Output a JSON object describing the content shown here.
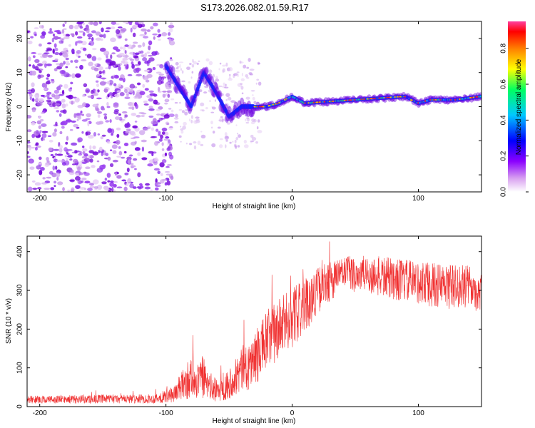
{
  "title": "S173.2026.082.01.59.R17",
  "chart_data": [
    {
      "type": "heatmap",
      "xlabel": "Height of straight line (km)",
      "ylabel": "Frequency (Hz)",
      "xlim": [
        -210,
        150
      ],
      "ylim": [
        -25,
        25
      ],
      "xticks": [
        -200,
        -100,
        0,
        100
      ],
      "yticks": [
        -20,
        -10,
        0,
        10,
        20
      ],
      "colorbar": {
        "label": "Normalized spectral amplitude",
        "range": [
          0,
          0.95
        ],
        "ticks": [
          0.0,
          0.2,
          0.4,
          0.6,
          0.8
        ],
        "colormap": [
          "#ffffff",
          "#d8a0f0",
          "#8a00ff",
          "#0000ff",
          "#00c8ff",
          "#00ff60",
          "#ffff00",
          "#ff8000",
          "#ff0000",
          "#ff40a0"
        ]
      },
      "ridge": [
        {
          "x": -100,
          "y": 12
        },
        {
          "x": -90,
          "y": 6
        },
        {
          "x": -80,
          "y": 0
        },
        {
          "x": -70,
          "y": 10
        },
        {
          "x": -60,
          "y": 4
        },
        {
          "x": -50,
          "y": -3
        },
        {
          "x": -40,
          "y": 0
        },
        {
          "x": -30,
          "y": 0
        },
        {
          "x": -20,
          "y": 0
        },
        {
          "x": -10,
          "y": 1
        },
        {
          "x": 0,
          "y": 3
        },
        {
          "x": 10,
          "y": 1
        },
        {
          "x": 30,
          "y": 1.5
        },
        {
          "x": 50,
          "y": 2
        },
        {
          "x": 70,
          "y": 2.5
        },
        {
          "x": 90,
          "y": 3
        },
        {
          "x": 100,
          "y": 1
        },
        {
          "x": 110,
          "y": 2
        },
        {
          "x": 130,
          "y": 2
        },
        {
          "x": 150,
          "y": 3
        }
      ]
    },
    {
      "type": "line",
      "xlabel": "Height of straight line (km)",
      "ylabel": "SNR (10 * v/v)",
      "xlim": [
        -210,
        150
      ],
      "ylim": [
        0,
        440
      ],
      "xticks": [
        -200,
        -100,
        0,
        100
      ],
      "yticks": [
        0,
        100,
        200,
        300,
        400
      ],
      "color": "#f03030",
      "envelope": [
        {
          "x": -210,
          "mean": 18,
          "spread": 10
        },
        {
          "x": -110,
          "mean": 20,
          "spread": 12
        },
        {
          "x": -95,
          "mean": 30,
          "spread": 20
        },
        {
          "x": -80,
          "mean": 75,
          "spread": 55
        },
        {
          "x": -70,
          "mean": 65,
          "spread": 45
        },
        {
          "x": -60,
          "mean": 40,
          "spread": 30
        },
        {
          "x": -50,
          "mean": 60,
          "spread": 40
        },
        {
          "x": -40,
          "mean": 95,
          "spread": 60
        },
        {
          "x": -30,
          "mean": 120,
          "spread": 70
        },
        {
          "x": -20,
          "mean": 170,
          "spread": 80
        },
        {
          "x": -10,
          "mean": 200,
          "spread": 80
        },
        {
          "x": 0,
          "mean": 230,
          "spread": 80
        },
        {
          "x": 10,
          "mean": 260,
          "spread": 70
        },
        {
          "x": 20,
          "mean": 300,
          "spread": 60
        },
        {
          "x": 40,
          "mean": 345,
          "spread": 45
        },
        {
          "x": 60,
          "mean": 340,
          "spread": 50
        },
        {
          "x": 80,
          "mean": 330,
          "spread": 55
        },
        {
          "x": 100,
          "mean": 320,
          "spread": 55
        },
        {
          "x": 120,
          "mean": 310,
          "spread": 60
        },
        {
          "x": 140,
          "mean": 310,
          "spread": 55
        },
        {
          "x": 150,
          "mean": 290,
          "spread": 50
        }
      ]
    }
  ]
}
